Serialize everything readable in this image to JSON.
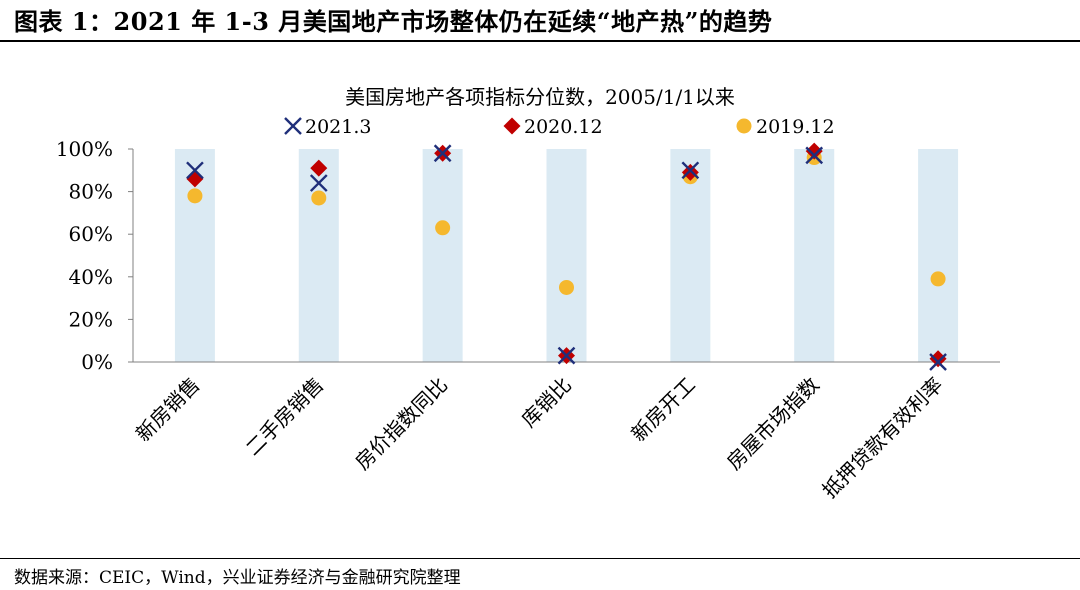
{
  "figure": {
    "title": "图表 1：2021 年 1-3 月美国地产市场整体仍在延续“地产热”的趋势",
    "source": "数据来源：CEIC，Wind，兴业证券经济与金融研究院整理"
  },
  "colors": {
    "band": "#dbeaf3",
    "s2021_3": "#1f2f7a",
    "s2020_12": "#c00000",
    "s2019_12": "#f5b82e"
  },
  "chart_data": {
    "type": "scatter",
    "title": "美国房地产各项指标分位数，2005/1/1以来",
    "categories": [
      "新房销售",
      "二手房销售",
      "房价指数同比",
      "库销比",
      "新房开工",
      "房屋市场指数",
      "抵押贷款有效利率"
    ],
    "ylim": [
      0,
      100
    ],
    "yticks": [
      "0%",
      "20%",
      "40%",
      "60%",
      "80%",
      "100%"
    ],
    "ytick_values": [
      0,
      20,
      40,
      60,
      80,
      100
    ],
    "band_value": 100,
    "legend_position": "top",
    "series": [
      {
        "name": "2021.3",
        "marker": "x",
        "values": [
          90,
          84,
          98,
          3,
          90,
          97,
          0
        ]
      },
      {
        "name": "2020.12",
        "marker": "diamond",
        "values": [
          86,
          91,
          98,
          3,
          89,
          99,
          1.5
        ]
      },
      {
        "name": "2019.12",
        "marker": "circle",
        "values": [
          78,
          77,
          63,
          35,
          87,
          96,
          39
        ]
      }
    ]
  }
}
